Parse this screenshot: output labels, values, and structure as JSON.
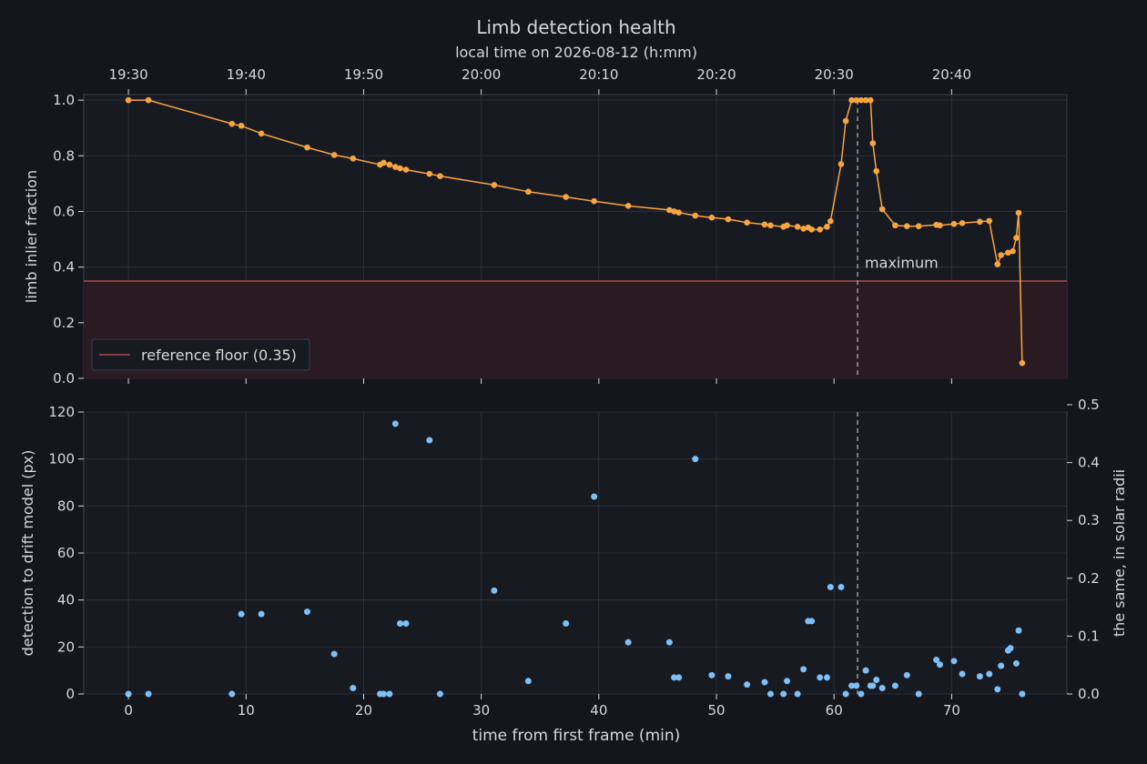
{
  "chart_data": [
    {
      "type": "line",
      "title": "Limb detection health",
      "top_axis_label": "local time on 2026-08-12 (h:mm)",
      "top_ticks": [
        "19:30",
        "19:40",
        "19:50",
        "20:00",
        "20:10",
        "20:20",
        "20:30",
        "20:40"
      ],
      "ylabel": "limb inlier fraction",
      "xlim": [
        -3.8,
        79.8
      ],
      "ylim": [
        0,
        1.02
      ],
      "yticks": [
        "0.0",
        "0.2",
        "0.4",
        "0.6",
        "0.8",
        "1.0"
      ],
      "grid": true,
      "legend": "lower-left",
      "reference_floor": {
        "value": 0.35,
        "label": "reference floor (0.35)"
      },
      "maximum_marker": {
        "x": 62.0,
        "label": "maximum"
      },
      "series": [
        {
          "x": [
            0,
            1.7,
            8.8,
            9.6,
            11.3,
            15.2,
            17.5,
            19.1,
            21.4,
            21.7,
            22.2,
            22.7,
            23.1,
            23.6,
            25.6,
            26.5,
            31.1,
            34.0,
            37.2,
            39.6,
            42.5,
            46.0,
            46.4,
            46.8,
            48.2,
            49.6,
            51.0,
            52.6,
            54.1,
            54.6,
            55.7,
            56.0,
            56.9,
            57.4,
            57.8,
            58.1,
            58.8,
            59.4,
            59.7,
            60.6,
            61.0,
            61.5,
            61.9,
            62.3,
            62.7,
            63.1,
            63.3,
            63.6,
            64.1,
            65.2,
            66.2,
            67.2,
            68.7,
            69.0,
            70.2,
            70.9,
            72.4,
            73.2,
            73.9,
            74.2,
            74.8,
            75.2,
            75.5,
            75.7,
            76.0
          ],
          "values": [
            1.0,
            1.0,
            0.915,
            0.908,
            0.88,
            0.83,
            0.803,
            0.79,
            0.768,
            0.775,
            0.768,
            0.76,
            0.755,
            0.75,
            0.735,
            0.727,
            0.695,
            0.671,
            0.652,
            0.637,
            0.62,
            0.605,
            0.6,
            0.596,
            0.585,
            0.578,
            0.572,
            0.56,
            0.553,
            0.55,
            0.545,
            0.55,
            0.545,
            0.538,
            0.542,
            0.535,
            0.535,
            0.545,
            0.565,
            0.77,
            0.925,
            1.0,
            1.0,
            1.0,
            1.0,
            1.0,
            0.845,
            0.745,
            0.608,
            0.55,
            0.547,
            0.547,
            0.552,
            0.55,
            0.555,
            0.558,
            0.563,
            0.566,
            0.41,
            0.443,
            0.452,
            0.457,
            0.505,
            0.595,
            0.055
          ]
        }
      ]
    },
    {
      "type": "scatter",
      "ylabel": "detection to drift model (px)",
      "y2label": "the same, in solar radii",
      "xlabel": "time from first frame (min)",
      "xlim": [
        -3.8,
        79.8
      ],
      "ylim": [
        0,
        120
      ],
      "y2lim": [
        0,
        0.5
      ],
      "xticks": [
        "0",
        "10",
        "20",
        "30",
        "40",
        "50",
        "60",
        "70"
      ],
      "yticks": [
        "0",
        "20",
        "40",
        "60",
        "80",
        "100",
        "120"
      ],
      "y2ticks": [
        "0.0",
        "0.1",
        "0.2",
        "0.3",
        "0.4",
        "0.5"
      ],
      "grid": true,
      "maximum_marker": {
        "x": 62.0
      },
      "series": [
        {
          "x": [
            0,
            1.7,
            8.8,
            9.6,
            11.3,
            15.2,
            17.5,
            19.1,
            21.4,
            21.7,
            22.2,
            22.7,
            23.1,
            23.6,
            25.6,
            26.5,
            31.1,
            34.0,
            37.2,
            39.6,
            42.5,
            46.0,
            46.4,
            46.8,
            48.2,
            49.6,
            51.0,
            52.6,
            54.1,
            54.6,
            55.7,
            56.0,
            56.9,
            57.4,
            57.8,
            58.1,
            58.8,
            59.4,
            59.7,
            60.6,
            61.0,
            61.5,
            61.9,
            62.3,
            62.7,
            63.1,
            63.3,
            63.6,
            64.1,
            65.2,
            66.2,
            67.2,
            68.7,
            69.0,
            70.2,
            70.9,
            72.4,
            73.2,
            73.9,
            74.2,
            74.8,
            75.0,
            75.5,
            75.7,
            76.0
          ],
          "values": [
            0,
            0,
            0,
            34,
            34,
            35,
            17,
            2.5,
            0,
            0,
            0,
            115,
            30,
            30,
            108,
            0,
            44,
            5.5,
            30,
            84,
            22,
            22,
            7,
            7,
            100,
            8,
            7.5,
            4,
            5,
            0,
            0,
            5.5,
            0,
            10.5,
            31,
            31,
            7,
            7,
            45.5,
            45.5,
            0,
            3.5,
            3.5,
            0,
            10,
            3.5,
            3.5,
            6,
            2.5,
            3.5,
            8,
            0,
            14.5,
            12.5,
            14,
            8.5,
            7.5,
            8.5,
            2,
            12,
            18.5,
            19.5,
            13,
            27,
            0
          ]
        }
      ]
    }
  ],
  "colors": {
    "background": "#14161c",
    "panel": "#181a21",
    "grid": "#2c2f38",
    "axis": "#3d4049",
    "text": "#d8d8d8",
    "line": "#f7a541",
    "scatter": "#7cc0f7",
    "floor_line": "#b04a4a",
    "floor_fill": "#2a1b22"
  }
}
